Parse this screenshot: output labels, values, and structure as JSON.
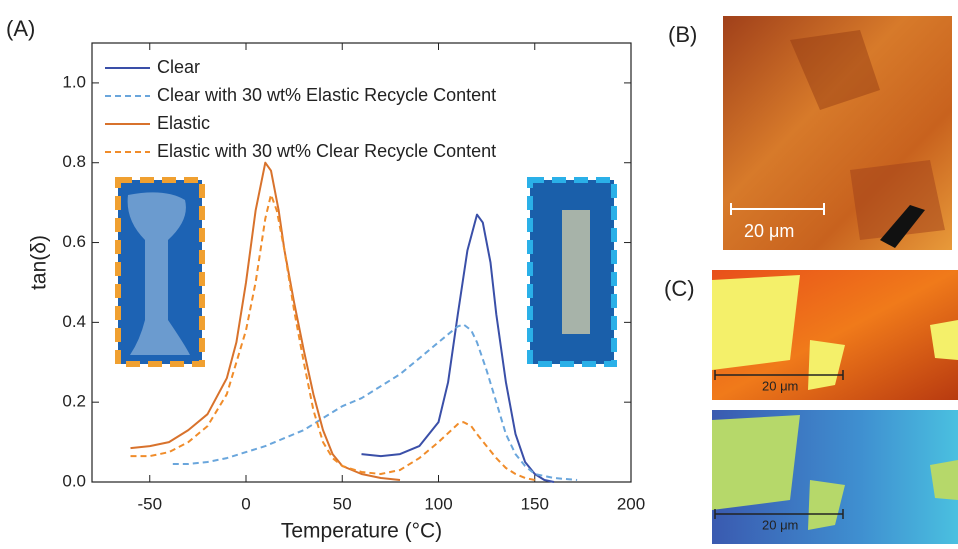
{
  "chart_data": {
    "type": "line",
    "panel_label": "(A)",
    "x_label": "Temperature (°C)",
    "y_label": "tan(δ)",
    "xlim": [
      -80,
      200
    ],
    "ylim": [
      0,
      1.1
    ],
    "xticks": [
      -50,
      0,
      50,
      100,
      150,
      200
    ],
    "yticks": [
      {
        "value": 0,
        "label": "0.0"
      },
      0.2,
      0.4,
      0.6,
      0.8,
      {
        "value": 1,
        "label": "1.0"
      }
    ],
    "legend": "upper-left",
    "series": [
      {
        "name": "Clear",
        "color": "#3a4fa8",
        "dashed": false,
        "x": [
          60,
          70,
          80,
          90,
          100,
          105,
          110,
          115,
          120,
          123,
          127,
          130,
          135,
          140,
          145,
          150,
          155,
          160
        ],
        "values": [
          0.07,
          0.065,
          0.07,
          0.09,
          0.15,
          0.25,
          0.42,
          0.58,
          0.67,
          0.65,
          0.55,
          0.42,
          0.25,
          0.12,
          0.05,
          0.02,
          0.005,
          0.0
        ]
      },
      {
        "name": "Clear with 30 wt% Elastic Recycle Content",
        "color": "#6aa6dc",
        "dashed": true,
        "x": [
          -38,
          -30,
          -20,
          -10,
          0,
          10,
          20,
          30,
          40,
          50,
          60,
          70,
          80,
          90,
          100,
          105,
          110,
          113,
          117,
          120,
          125,
          130,
          135,
          140,
          145,
          150,
          160,
          172
        ],
        "values": [
          0.045,
          0.045,
          0.05,
          0.06,
          0.075,
          0.09,
          0.11,
          0.13,
          0.16,
          0.19,
          0.21,
          0.24,
          0.27,
          0.31,
          0.35,
          0.37,
          0.39,
          0.395,
          0.38,
          0.35,
          0.28,
          0.2,
          0.12,
          0.07,
          0.04,
          0.02,
          0.01,
          0.005
        ]
      },
      {
        "name": "Elastic",
        "color": "#d8722c",
        "dashed": false,
        "x": [
          -60,
          -50,
          -40,
          -30,
          -20,
          -10,
          -5,
          0,
          5,
          10,
          13,
          17,
          20,
          25,
          30,
          35,
          40,
          45,
          50,
          60,
          70,
          80
        ],
        "values": [
          0.085,
          0.09,
          0.1,
          0.13,
          0.17,
          0.26,
          0.35,
          0.5,
          0.68,
          0.8,
          0.78,
          0.68,
          0.58,
          0.45,
          0.33,
          0.22,
          0.13,
          0.07,
          0.04,
          0.02,
          0.01,
          0.005
        ]
      },
      {
        "name": "Elastic with 30 wt% Clear Recycle Content",
        "color": "#f08c2a",
        "dashed": true,
        "x": [
          -60,
          -50,
          -40,
          -30,
          -20,
          -10,
          0,
          5,
          10,
          13,
          16,
          20,
          25,
          30,
          35,
          40,
          45,
          50,
          60,
          70,
          80,
          90,
          100,
          110,
          113,
          117,
          120,
          125,
          130,
          135,
          140,
          145,
          150
        ],
        "values": [
          0.065,
          0.065,
          0.075,
          0.1,
          0.14,
          0.22,
          0.38,
          0.5,
          0.66,
          0.72,
          0.68,
          0.58,
          0.43,
          0.3,
          0.18,
          0.1,
          0.06,
          0.04,
          0.025,
          0.02,
          0.03,
          0.06,
          0.1,
          0.145,
          0.15,
          0.14,
          0.12,
          0.09,
          0.06,
          0.035,
          0.02,
          0.01,
          0.005
        ]
      }
    ]
  },
  "panels": {
    "b_label": "(B)",
    "c_label": "(C)",
    "b_scale": "20 μm",
    "c_top_scale": "20 μm",
    "c_bottom_scale": "20 μm"
  }
}
